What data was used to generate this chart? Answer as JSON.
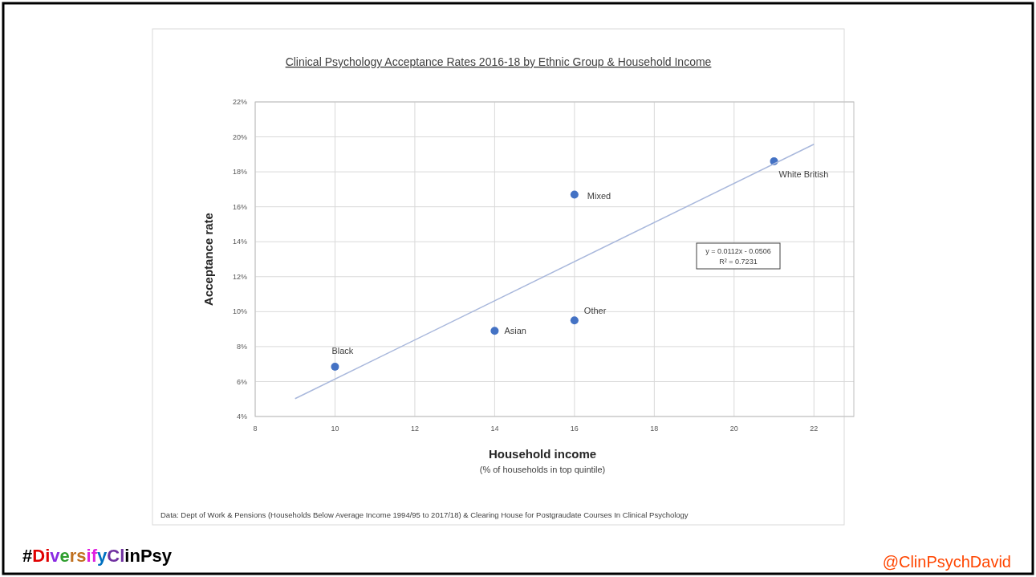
{
  "chart_data": {
    "type": "scatter",
    "title": "Clinical Psychology Acceptance Rates 2016-18 by Ethnic Group & Household Income",
    "xlabel": "Household income",
    "subtitle": "(% of households in top quintile)",
    "ylabel": "Acceptance rate",
    "xlim": [
      8,
      23
    ],
    "xticks": [
      8,
      10,
      12,
      14,
      16,
      18,
      20,
      22
    ],
    "ylim": [
      4,
      22
    ],
    "yticks": [
      {
        "value": 4,
        "label": "4%"
      },
      {
        "value": 6,
        "label": "6%"
      },
      {
        "value": 8,
        "label": "8%"
      },
      {
        "value": 10,
        "label": "10%"
      },
      {
        "value": 12,
        "label": "12%"
      },
      {
        "value": 14,
        "label": "14%"
      },
      {
        "value": 16,
        "label": "16%"
      },
      {
        "value": 18,
        "label": "18%"
      },
      {
        "value": 20,
        "label": "20%"
      },
      {
        "value": 22,
        "label": "22%"
      }
    ],
    "grid": true,
    "marker": "circle",
    "series": [
      {
        "color": "#4472c4",
        "x": [
          10,
          14,
          16,
          16,
          21
        ],
        "values": [
          6.85,
          8.9,
          9.5,
          16.7,
          18.6
        ]
      },
      {
        "type": "line",
        "color": "#a9b8dc",
        "marker": "none",
        "x": [
          9,
          22
        ],
        "values": [
          5.02,
          19.58
        ]
      }
    ],
    "annotations": [
      {
        "text": "Black",
        "x": 10,
        "y": 6.85
      },
      {
        "text": "Asian",
        "x": 14,
        "y": 8.9
      },
      {
        "text": "Other",
        "x": 16,
        "y": 9.5
      },
      {
        "text": "Mixed",
        "x": 16,
        "y": 16.7
      },
      {
        "text": "White British",
        "x": 21,
        "y": 18.6
      },
      "y = 0.0112x - 0.0506",
      "R² = 0.7231",
      "Data: Dept of Work & Pensions (Households Below Average Income 1994/95 to 2017/18) & Clearing House for Postgraudate Courses In Clinical Psychology",
      "#DiversifyClinPsy",
      "@ClinPsychDavid"
    ]
  }
}
